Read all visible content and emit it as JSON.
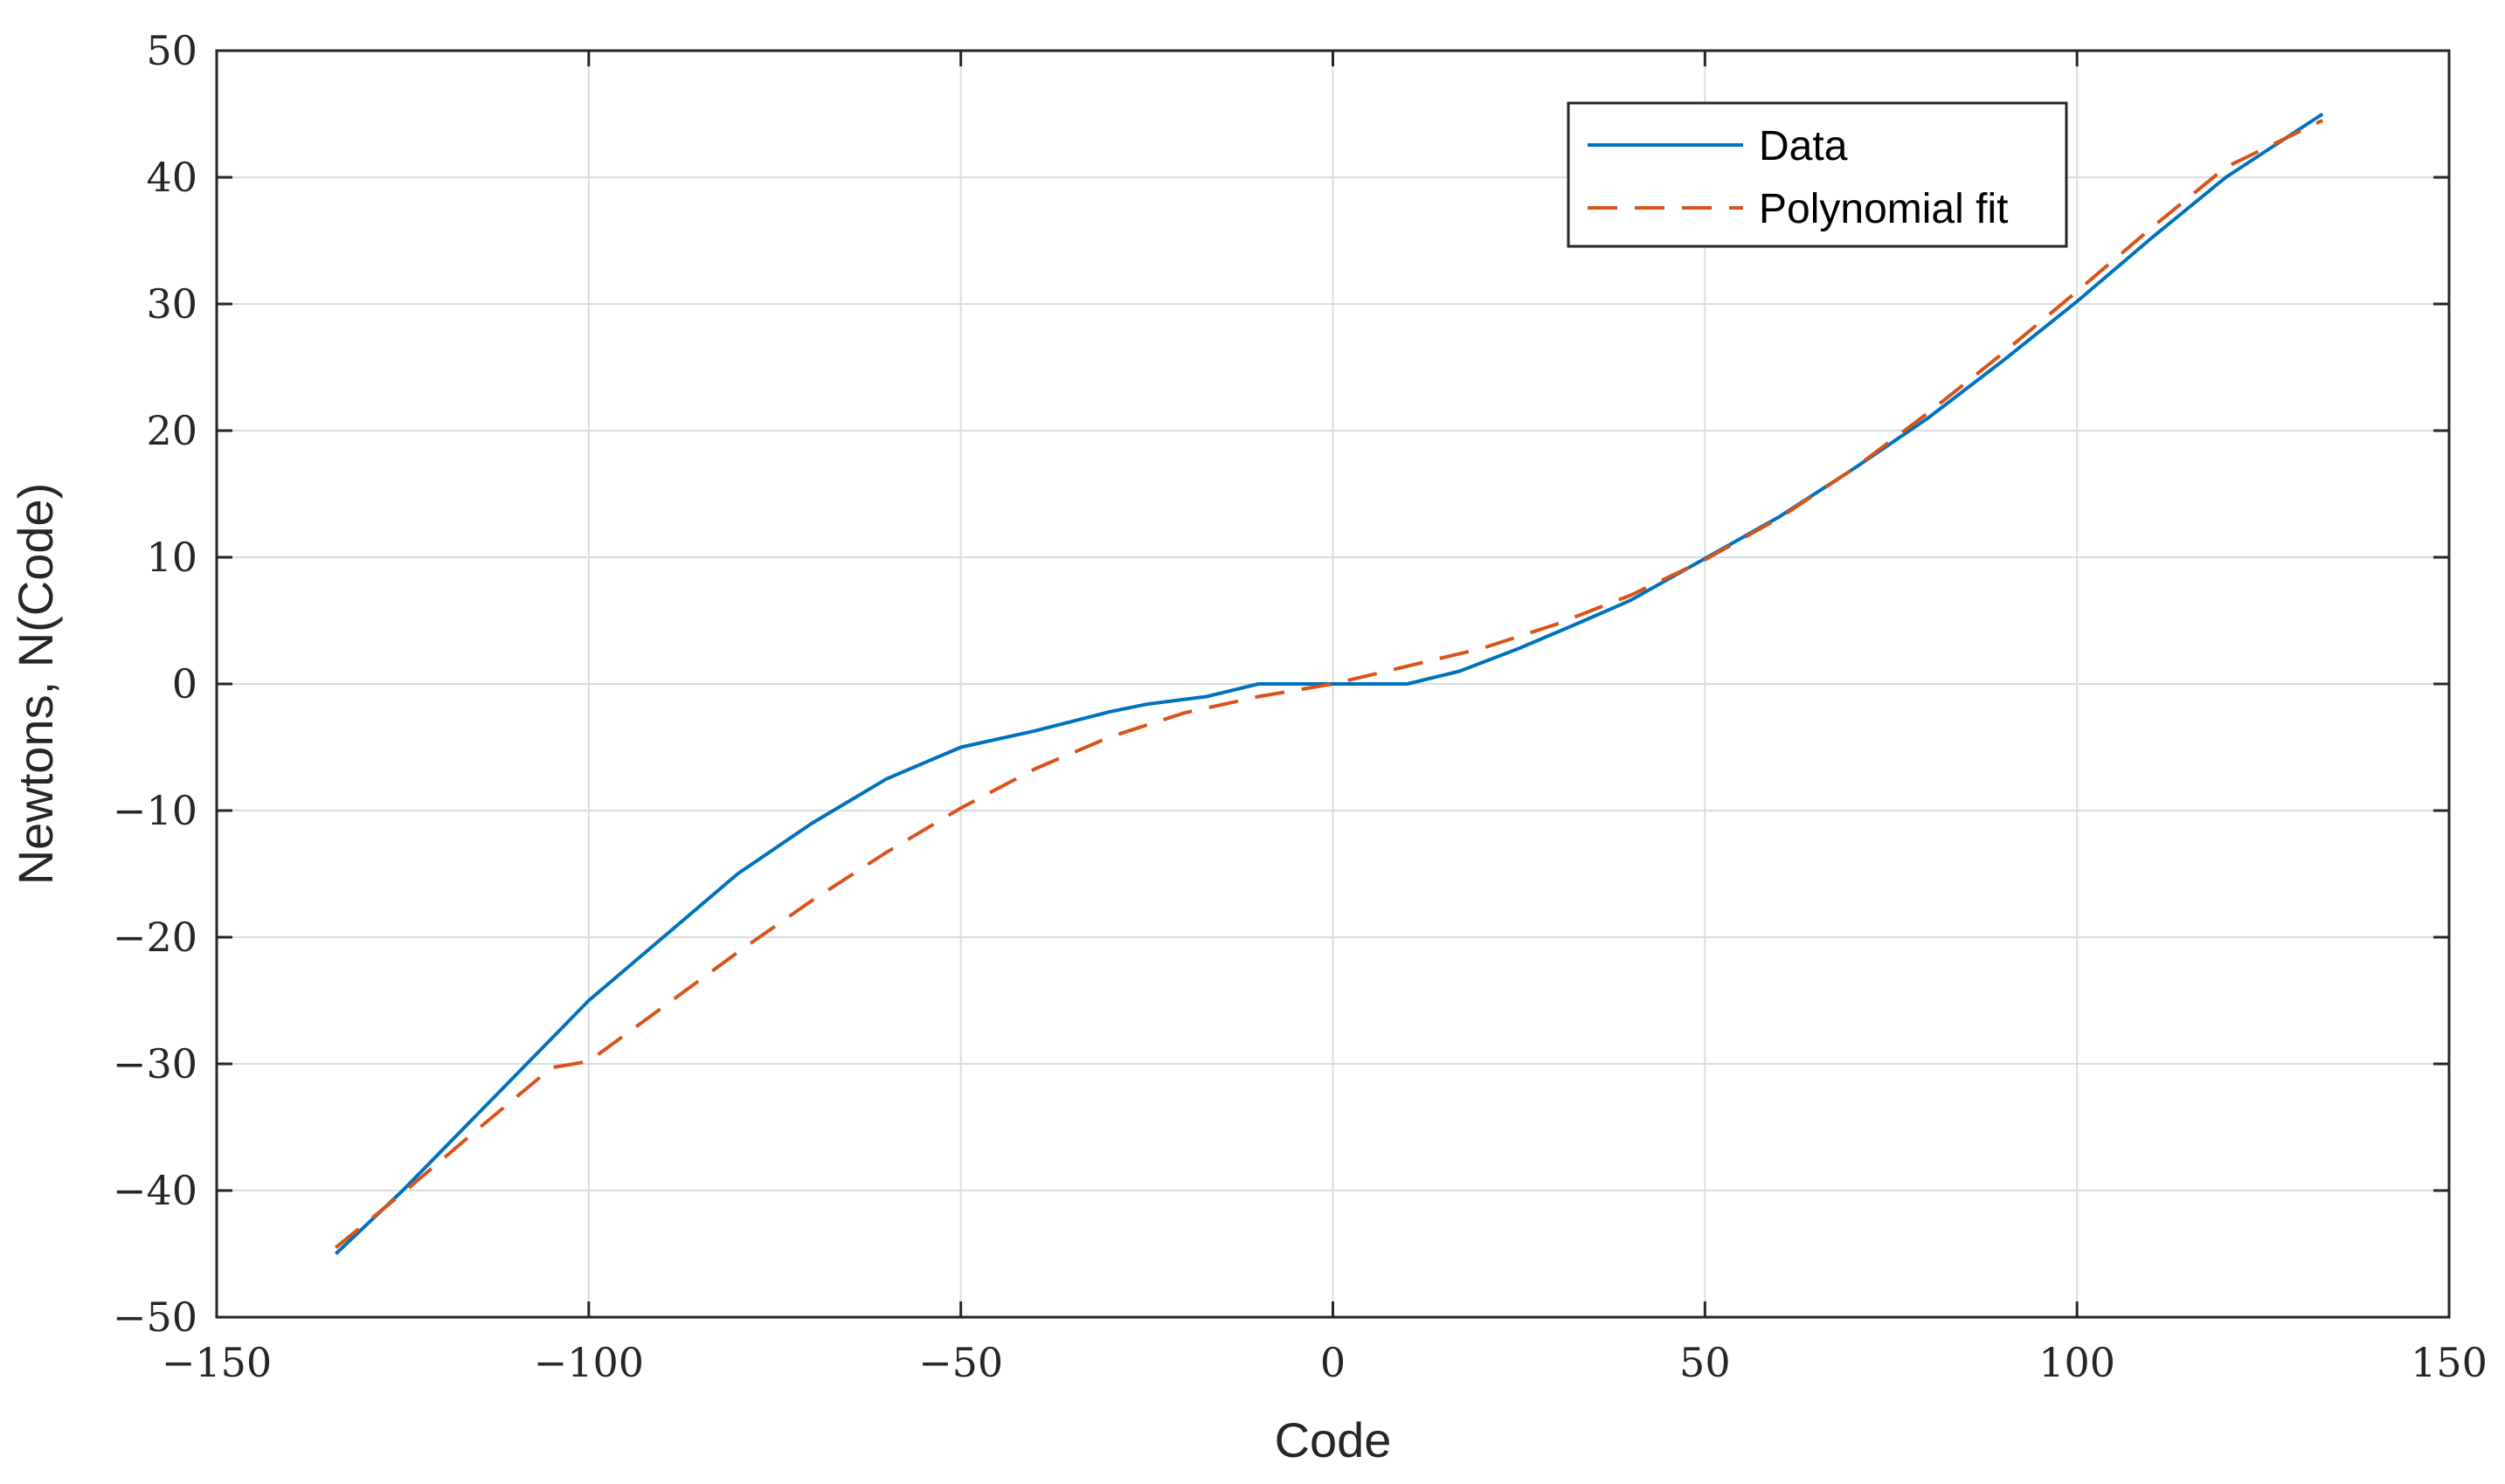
{
  "chart_data": {
    "type": "line",
    "title": "",
    "xlabel": "Code",
    "ylabel": "Newtons, N(Code)",
    "xlim": [
      -150,
      150
    ],
    "ylim": [
      -50,
      50
    ],
    "xticks": [
      -150,
      -100,
      -50,
      0,
      50,
      100,
      150
    ],
    "xtick_labels": [
      "−150",
      "−100",
      "−50",
      "0",
      "50",
      "100",
      "150"
    ],
    "yticks": [
      -50,
      -40,
      -30,
      -20,
      -10,
      0,
      10,
      20,
      30,
      40,
      50
    ],
    "ytick_labels": [
      "−50",
      "−40",
      "−30",
      "−20",
      "−10",
      "0",
      "10",
      "20",
      "30",
      "40",
      "50"
    ],
    "grid": true,
    "legend_position": "top-right",
    "series": [
      {
        "name": "Data",
        "color": "#0072BD",
        "style": "solid",
        "x": [
          -134,
          -125,
          -115,
          -105,
          -100,
          -90,
          -80,
          -70,
          -60,
          -50,
          -40,
          -30,
          -25,
          -17,
          -10,
          0,
          10,
          17,
          25,
          33,
          40,
          50,
          60,
          70,
          80,
          90,
          100,
          110,
          120,
          133
        ],
        "y": [
          -45,
          -40,
          -34,
          -28,
          -25,
          -20,
          -15,
          -11,
          -7.5,
          -5,
          -3.7,
          -2.2,
          -1.6,
          -1,
          0,
          0,
          0,
          1,
          2.8,
          4.8,
          6.6,
          9.9,
          13.2,
          17,
          21,
          25.5,
          30.2,
          35.2,
          40,
          45
        ]
      },
      {
        "name": "Polynomial fit",
        "color": "#D95319",
        "style": "dashed",
        "x": [
          -134,
          -125,
          -115,
          -105,
          -100,
          -90,
          -80,
          -70,
          -60,
          -50,
          -40,
          -30,
          -20,
          -10,
          0,
          10,
          20,
          30,
          40,
          50,
          60,
          70,
          80,
          90,
          100,
          110,
          120,
          133
        ],
        "y": [
          -44.5,
          -40.2,
          -35.2,
          -30.3,
          -29.8,
          -25.5,
          -21.2,
          -17.1,
          -13.3,
          -9.8,
          -6.7,
          -4.2,
          -2.3,
          -1.0,
          0,
          1.4,
          2.8,
          4.7,
          7.0,
          9.8,
          13.1,
          17.0,
          21.4,
          26.1,
          31.0,
          36.0,
          40.8,
          44.5
        ]
      }
    ]
  }
}
